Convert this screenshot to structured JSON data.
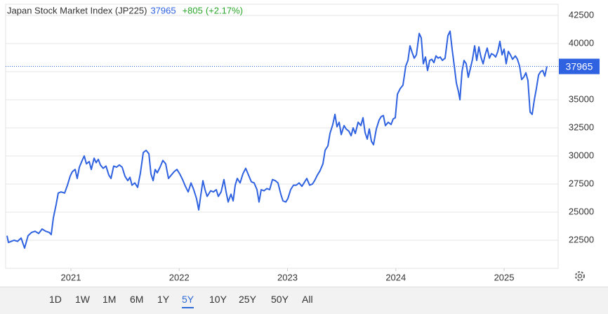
{
  "chart_data": {
    "type": "line",
    "title": "Japan Stock Market Index (JP225)",
    "last_value": 37965,
    "change": "+805",
    "change_pct": "(+2.17%)",
    "x": [
      2020.41,
      2020.423,
      2020.475,
      2020.507,
      2020.54,
      2020.572,
      2020.604,
      2020.637,
      2020.669,
      2020.702,
      2020.734,
      2020.767,
      2020.799,
      2020.818,
      2020.838,
      2020.864,
      2020.883,
      2020.909,
      2020.942,
      2020.968,
      2020.993,
      2021.013,
      2021.039,
      2021.058,
      2021.078,
      2021.104,
      2021.123,
      2021.143,
      2021.169,
      2021.188,
      2021.214,
      2021.233,
      2021.253,
      2021.272,
      2021.298,
      2021.324,
      2021.35,
      2021.37,
      2021.395,
      2021.421,
      2021.447,
      2021.473,
      2021.499,
      2021.525,
      2021.545,
      2021.564,
      2021.59,
      2021.616,
      2021.642,
      2021.668,
      2021.694,
      2021.72,
      2021.739,
      2021.759,
      2021.778,
      2021.797,
      2021.823,
      2021.849,
      2021.875,
      2021.901,
      2021.927,
      2021.953,
      2021.979,
      2022.005,
      2022.031,
      2022.057,
      2022.083,
      2022.109,
      2022.134,
      2022.16,
      2022.18,
      2022.199,
      2022.219,
      2022.238,
      2022.258,
      2022.29,
      2022.316,
      2022.342,
      2022.361,
      2022.387,
      2022.413,
      2022.433,
      2022.452,
      2022.478,
      2022.498,
      2022.517,
      2022.536,
      2022.562,
      2022.588,
      2022.614,
      2022.64,
      2022.666,
      2022.692,
      2022.718,
      2022.737,
      2022.757,
      2022.783,
      2022.809,
      2022.835,
      2022.861,
      2022.887,
      2022.912,
      2022.938,
      2022.958,
      2022.984,
      2023.003,
      2023.029,
      2023.055,
      2023.081,
      2023.107,
      2023.133,
      2023.159,
      2023.178,
      2023.204,
      2023.23,
      2023.25,
      2023.276,
      2023.301,
      2023.327,
      2023.347,
      2023.373,
      2023.392,
      2023.418,
      2023.438,
      2023.457,
      2023.477,
      2023.496,
      2023.522,
      2023.541,
      2023.567,
      2023.587,
      2023.606,
      2023.626,
      2023.652,
      2023.677,
      2023.697,
      2023.716,
      2023.736,
      2023.755,
      2023.775,
      2023.794,
      2023.82,
      2023.846,
      2023.865,
      2023.885,
      2023.904,
      2023.93,
      2023.956,
      2023.976,
      2023.995,
      2024.015,
      2024.041,
      2024.066,
      2024.092,
      2024.112,
      2024.131,
      2024.151,
      2024.17,
      2024.19,
      2024.216,
      2024.235,
      2024.254,
      2024.274,
      2024.293,
      2024.313,
      2024.332,
      2024.352,
      2024.371,
      2024.391,
      2024.41,
      2024.43,
      2024.455,
      2024.481,
      2024.501,
      2024.52,
      2024.54,
      2024.559,
      2024.579,
      2024.592,
      2024.611,
      2024.63,
      2024.65,
      2024.669,
      2024.689,
      2024.708,
      2024.728,
      2024.747,
      2024.767,
      2024.786,
      2024.806,
      2024.825,
      2024.844,
      2024.864,
      2024.883,
      2024.903,
      2024.922,
      2024.942,
      2024.961,
      2024.981,
      2025.0,
      2025.019,
      2025.039,
      2025.058,
      2025.078,
      2025.104,
      2025.123,
      2025.143,
      2025.162,
      2025.181,
      2025.201,
      2025.22,
      2025.24,
      2025.259,
      2025.279,
      2025.298,
      2025.318,
      2025.337,
      2025.357,
      2025.376,
      2025.395
    ],
    "series": [
      {
        "name": "JP225",
        "color": "#2f62e0",
        "values": [
          22900,
          22300,
          22500,
          22400,
          22700,
          21800,
          22900,
          23200,
          23300,
          23100,
          23500,
          23300,
          23200,
          23000,
          24500,
          25700,
          26700,
          26800,
          26700,
          27400,
          28200,
          28600,
          28800,
          28000,
          29000,
          29600,
          30000,
          29300,
          29500,
          28800,
          29800,
          29400,
          29700,
          29200,
          28900,
          29100,
          28300,
          28000,
          29100,
          29000,
          29200,
          29000,
          28200,
          27800,
          28100,
          27400,
          27600,
          27200,
          28500,
          30300,
          30500,
          30200,
          28400,
          27800,
          28800,
          28500,
          29000,
          29600,
          29300,
          28000,
          28300,
          28600,
          28800,
          28400,
          27900,
          27300,
          26800,
          27600,
          27000,
          26200,
          25200,
          26500,
          27800,
          27000,
          26400,
          26900,
          26800,
          27000,
          26400,
          26800,
          27900,
          26800,
          25900,
          26600,
          26000,
          27400,
          28000,
          27600,
          28400,
          28900,
          28300,
          27700,
          27600,
          27000,
          25900,
          27000,
          26900,
          27100,
          27000,
          27900,
          27800,
          27600,
          26600,
          26000,
          25900,
          26200,
          27000,
          27400,
          27400,
          27600,
          27300,
          27700,
          28000,
          27400,
          27500,
          27800,
          28300,
          28700,
          29300,
          30500,
          30900,
          32000,
          32800,
          33700,
          32600,
          33000,
          31900,
          32700,
          32400,
          32200,
          31800,
          32500,
          32000,
          33000,
          32700,
          33400,
          32100,
          31500,
          32400,
          31300,
          31000,
          32400,
          33200,
          33500,
          33600,
          32700,
          33000,
          32800,
          33300,
          33400,
          35500,
          36000,
          36300,
          38000,
          38500,
          39800,
          39200,
          38700,
          39000,
          40900,
          40500,
          38200,
          38800,
          37600,
          38500,
          38600,
          38300,
          38900,
          38700,
          38800,
          38500,
          38700,
          40700,
          41100,
          39500,
          38000,
          36500,
          35700,
          35000,
          37500,
          38500,
          38200,
          37000,
          37800,
          38600,
          39800,
          38500,
          39700,
          38800,
          38200,
          39000,
          39600,
          38700,
          39100,
          39000,
          38800,
          39300,
          40200,
          39000,
          39500,
          38200,
          39300,
          39000,
          38600,
          38900,
          38600,
          38000,
          36800,
          37000,
          37400,
          36700,
          33900,
          33700,
          35000,
          36000,
          37200,
          37500,
          37600,
          37100,
          37965
        ]
      }
    ],
    "xlim": [
      2020.397,
      2025.499
    ],
    "xticks": [
      2021,
      2022,
      2023,
      2024,
      2025
    ],
    "ylim": [
      20000,
      43500
    ],
    "yticks": [
      22500,
      25000,
      27500,
      30000,
      32500,
      35000,
      37500,
      40000,
      42500
    ],
    "grid": true
  },
  "range_buttons": {
    "labels": [
      "1D",
      "1W",
      "1M",
      "6M",
      "1Y",
      "5Y",
      "10Y",
      "25Y",
      "50Y",
      "All"
    ],
    "selected": "5Y"
  }
}
